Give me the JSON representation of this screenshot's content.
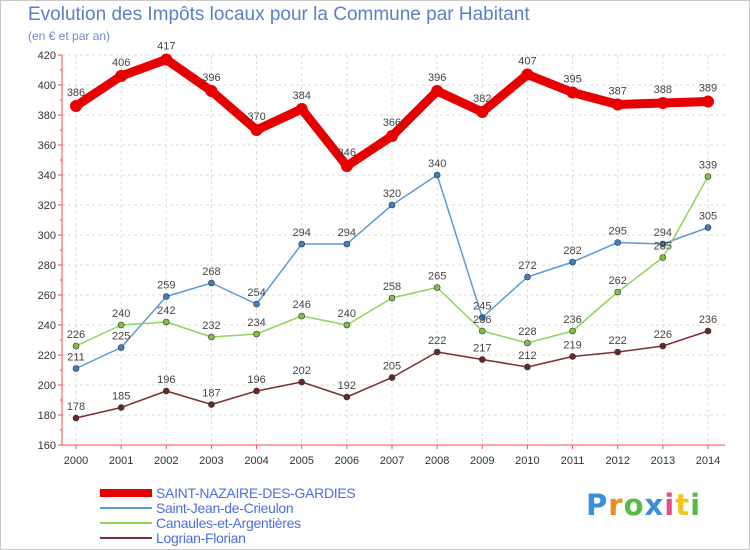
{
  "chart_data": {
    "type": "line",
    "title": "Evolution des Impôts locaux pour la Commune par Habitant",
    "subtitle": "(en € et par an)",
    "xlabel": "",
    "ylabel": "",
    "x": [
      "2000",
      "2001",
      "2002",
      "2003",
      "2004",
      "2005",
      "2006",
      "2007",
      "2008",
      "2009",
      "2010",
      "2011",
      "2012",
      "2013",
      "2014"
    ],
    "ylim": [
      160,
      420
    ],
    "yticks": [
      160,
      180,
      200,
      220,
      240,
      260,
      280,
      300,
      320,
      340,
      360,
      380,
      400,
      420
    ],
    "grid": true,
    "legend_position": "bottom-left",
    "series": [
      {
        "name": "SAINT-NAZAIRE-DES-GARDIES",
        "color": "#e60000",
        "labelColor": "#4a6fe0",
        "marker": "#e60000",
        "values": [
          386,
          406,
          417,
          396,
          370,
          384,
          346,
          366,
          396,
          382,
          407,
          395,
          387,
          388,
          389
        ]
      },
      {
        "name": "Saint-Jean-de-Crieulon",
        "color": "#5b9bd5",
        "labelColor": "#4a6fe0",
        "marker": "#3d7fc4",
        "values": [
          211,
          225,
          259,
          268,
          254,
          294,
          294,
          320,
          340,
          245,
          272,
          282,
          295,
          294,
          305
        ]
      },
      {
        "name": "Canaules-et-Argentières",
        "color": "#8fd45a",
        "labelColor": "#4a6fe0",
        "marker": "#7cc242",
        "values": [
          226,
          240,
          242,
          232,
          234,
          246,
          240,
          258,
          265,
          236,
          228,
          236,
          262,
          285,
          339
        ]
      },
      {
        "name": "Logrian-Florian",
        "color": "#7a3030",
        "labelColor": "#4a6fe0",
        "marker": "#6e2525",
        "values": [
          178,
          185,
          196,
          187,
          196,
          202,
          192,
          205,
          222,
          217,
          212,
          219,
          222,
          226,
          236
        ]
      }
    ]
  },
  "logo": {
    "letters": [
      "P",
      "r",
      "o",
      "x",
      "i",
      "t",
      "i"
    ],
    "colors": [
      "#3a8fd8",
      "#f08a1e",
      "#58b947",
      "#3a8fd8",
      "#e84b8a",
      "#f0c419",
      "#58b947"
    ]
  }
}
